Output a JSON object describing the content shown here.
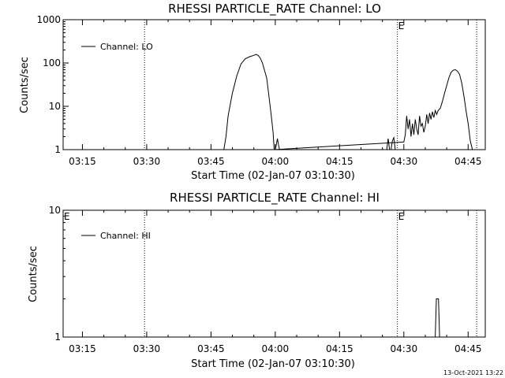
{
  "timestamp": "13-Oct-2021 13:22",
  "chart_data": [
    {
      "type": "line",
      "title": "RHESSI PARTICLE_RATE Channel: LO",
      "xlabel": "Start Time (02-Jan-07 03:10:30)",
      "ylabel": "Counts/sec",
      "xscale": "time",
      "yscale": "log",
      "xlim": [
        "03:10:30",
        "04:49:00"
      ],
      "ylim": [
        1,
        1000
      ],
      "x_ticks": [
        "03:15",
        "03:30",
        "03:45",
        "04:00",
        "04:15",
        "04:30",
        "04:45"
      ],
      "y_ticks": [
        "1",
        "10",
        "100",
        "1000"
      ],
      "legend": {
        "position": "top-left",
        "entries": [
          "Channel: LO"
        ]
      },
      "markers": [
        {
          "time": "03:29:30",
          "label": ""
        },
        {
          "time": "04:28:30",
          "label": "E"
        },
        {
          "time": "04:47:00",
          "label": ""
        }
      ],
      "series": [
        {
          "name": "Channel: LO",
          "x": [
            "03:48:00",
            "03:48:30",
            "03:49:00",
            "03:50:00",
            "03:51:00",
            "03:52:00",
            "03:53:00",
            "03:54:00",
            "03:55:00",
            "03:55:30",
            "03:56:00",
            "03:56:30",
            "03:57:00",
            "03:58:00",
            "03:58:30",
            "03:59:00",
            "03:59:30",
            "03:59:45",
            "04:30:00",
            "04:30:20",
            "04:30:40",
            "04:31:00",
            "04:31:20",
            "04:31:40",
            "04:32:00",
            "04:32:20",
            "04:32:40",
            "04:33:00",
            "04:33:20",
            "04:33:40",
            "04:34:00",
            "04:34:20",
            "04:34:40",
            "04:35:00",
            "04:35:20",
            "04:35:40",
            "04:36:00",
            "04:36:20",
            "04:36:40",
            "04:37:00",
            "04:37:20",
            "04:37:40",
            "04:38:00",
            "04:38:30",
            "04:39:00",
            "04:39:30",
            "04:40:00",
            "04:40:30",
            "04:41:00",
            "04:41:30",
            "04:42:00",
            "04:42:30",
            "04:43:00",
            "04:43:30",
            "04:44:00",
            "04:44:30",
            "04:45:00",
            "04:45:30",
            "04:46:00"
          ],
          "y": [
            1,
            2,
            6,
            20,
            50,
            95,
            125,
            140,
            150,
            158,
            150,
            130,
            100,
            45,
            18,
            7,
            2.5,
            1,
            1.5,
            2.2,
            6,
            3,
            5,
            2,
            4,
            2.2,
            5,
            3,
            2.2,
            6,
            3.5,
            4,
            2.5,
            3.5,
            6.5,
            4,
            7,
            5,
            7.5,
            5.5,
            8,
            6.5,
            8,
            9,
            13,
            20,
            30,
            45,
            60,
            68,
            70,
            65,
            55,
            35,
            18,
            8,
            4,
            1.6,
            1
          ]
        },
        {
          "name": "",
          "x": [
            "04:00:00",
            "04:00:15",
            "04:00:30",
            "04:00:45",
            "04:01:00"
          ],
          "y": [
            1,
            1.3,
            1.8,
            1.3,
            1
          ]
        },
        {
          "name": "",
          "x": [
            "04:26:00",
            "04:26:20",
            "04:26:40",
            "04:27:00",
            "04:27:20",
            "04:27:40",
            "04:28:00"
          ],
          "y": [
            1,
            1.8,
            1,
            1,
            1.6,
            1.9,
            1
          ]
        }
      ]
    },
    {
      "type": "line",
      "title": "RHESSI PARTICLE_RATE Channel: HI",
      "xlabel": "Start Time (02-Jan-07 03:10:30)",
      "ylabel": "Counts/sec",
      "xscale": "time",
      "yscale": "log",
      "xlim": [
        "03:10:30",
        "04:49:00"
      ],
      "ylim": [
        1,
        10
      ],
      "x_ticks": [
        "03:15",
        "03:30",
        "03:45",
        "04:00",
        "04:15",
        "04:30",
        "04:45"
      ],
      "y_ticks": [
        "1",
        "10"
      ],
      "legend": {
        "position": "top-left",
        "entries": [
          "Channel: HI"
        ]
      },
      "markers": [
        {
          "time": "03:10:30",
          "label": "E"
        },
        {
          "time": "03:29:30",
          "label": ""
        },
        {
          "time": "04:28:30",
          "label": "E"
        },
        {
          "time": "04:47:00",
          "label": ""
        }
      ],
      "series": [
        {
          "name": "Channel: HI",
          "x": [
            "04:37:20",
            "04:37:35",
            "04:38:05",
            "04:38:20"
          ],
          "y": [
            1,
            2,
            2,
            1
          ]
        }
      ]
    }
  ]
}
